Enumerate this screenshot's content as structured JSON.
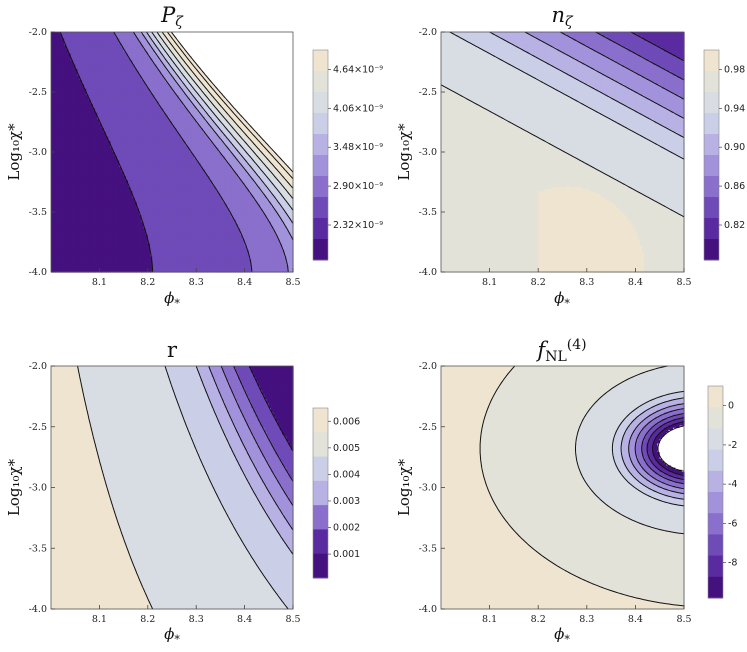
{
  "chart_data": [
    {
      "type": "contour",
      "title_main": "P",
      "title_sub": "ζ",
      "xlabel_main": "ϕ",
      "xlabel_sub": "*",
      "ylabel": "Log₁₀χ*",
      "xlim": [
        8.0,
        8.5
      ],
      "ylim": [
        -4.0,
        -2.0
      ],
      "xticks": [
        "8.1",
        "8.2",
        "8.3",
        "8.4",
        "8.5"
      ],
      "yticks": [
        "-4.0",
        "-3.5",
        "-3.0",
        "-2.5",
        "-2.0"
      ],
      "colorbar": {
        "ticks": [
          "2.32×10⁻⁹",
          "2.90×10⁻⁹",
          "3.48×10⁻⁹",
          "4.06×10⁻⁹",
          "4.64×10⁻⁹"
        ]
      },
      "regions": 10,
      "white_region": "upper-right"
    },
    {
      "type": "contour",
      "title_main": "n",
      "title_sub": "ζ",
      "xlabel_main": "ϕ",
      "xlabel_sub": "*",
      "ylabel": "Log₁₀χ*",
      "xlim": [
        8.0,
        8.5
      ],
      "ylim": [
        -4.0,
        -2.0
      ],
      "xticks": [
        "8.1",
        "8.2",
        "8.3",
        "8.4",
        "8.5"
      ],
      "yticks": [
        "-4.0",
        "-3.5",
        "-3.0",
        "-2.5",
        "-2.0"
      ],
      "colorbar": {
        "ticks": [
          "0.82",
          "0.86",
          "0.90",
          "0.94",
          "0.98"
        ]
      },
      "regions": 10
    },
    {
      "type": "contour",
      "title_main": "r",
      "title_sub": "",
      "xlabel_main": "ϕ",
      "xlabel_sub": "*",
      "ylabel": "Log₁₀χ*",
      "xlim": [
        8.0,
        8.5
      ],
      "ylim": [
        -4.0,
        -2.0
      ],
      "xticks": [
        "8.1",
        "8.2",
        "8.3",
        "8.4",
        "8.5"
      ],
      "yticks": [
        "-4.0",
        "-3.5",
        "-3.0",
        "-2.5",
        "-2.0"
      ],
      "colorbar": {
        "ticks": [
          "0.001",
          "0.002",
          "0.003",
          "0.004",
          "0.005",
          "0.006"
        ]
      },
      "regions": 7
    },
    {
      "type": "contour",
      "title_main": "f",
      "title_sub": "NL",
      "title_sup": "(4)",
      "xlabel_main": "ϕ",
      "xlabel_sub": "*",
      "ylabel": "Log₁₀χ*",
      "xlim": [
        8.0,
        8.5
      ],
      "ylim": [
        -4.0,
        -2.0
      ],
      "xticks": [
        "8.1",
        "8.2",
        "8.3",
        "8.4",
        "8.5"
      ],
      "yticks": [
        "-4.0",
        "-3.5",
        "-3.0",
        "-2.5",
        "-2.0"
      ],
      "colorbar": {
        "ticks": [
          "-8",
          "-6",
          "-4",
          "-2",
          "0"
        ]
      },
      "regions": 10,
      "white_region": "right-middle"
    }
  ],
  "colors": {
    "scale": [
      "#45117f",
      "#5a2aa0",
      "#6f4bb8",
      "#8a6fcc",
      "#a292dc",
      "#b8b1e4",
      "#cacfe7",
      "#d8dde4",
      "#e3e2d9",
      "#efe4d0"
    ]
  }
}
